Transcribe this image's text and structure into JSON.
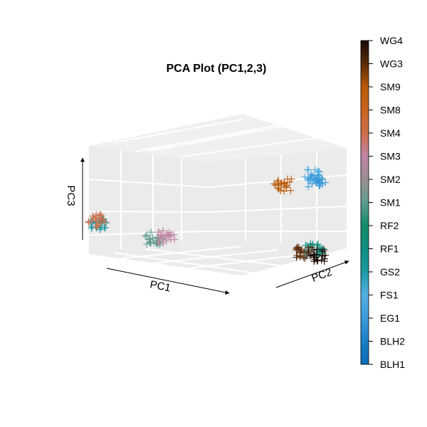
{
  "chart_data": {
    "type": "scatter",
    "title": "PCA Plot (PC1,2,3)",
    "xlabel": "PC1",
    "ylabel": "PC2",
    "zlabel": "PC3",
    "projection": "3d",
    "grid": true,
    "marker": "plus",
    "legend": {
      "type": "colorbar",
      "placement": "right",
      "labels": [
        "BLH1",
        "BLH2",
        "EG1",
        "FS1",
        "GS2",
        "RF1",
        "RF2",
        "SM1",
        "SM2",
        "SM3",
        "SM4",
        "SM8",
        "SM9",
        "WG3",
        "WG4"
      ],
      "colors": [
        "#0a6bb5",
        "#1a7fc6",
        "#3a9ad9",
        "#55aee0",
        "#1e9aa3",
        "#0f8f80",
        "#138b6a",
        "#5f9c8f",
        "#9a8f93",
        "#c084a4",
        "#cc6e4a",
        "#c9651f",
        "#b85a08",
        "#5a2a08",
        "#1a0a04"
      ]
    },
    "clusters": [
      {
        "group": "GS2",
        "pc1": -2.0,
        "pc2": -2.0,
        "pc3": -0.4,
        "color": "#1e9aa3"
      },
      {
        "group": "SM4",
        "pc1": -2.0,
        "pc2": -2.0,
        "pc3": -0.3,
        "color": "#cc6e4a"
      },
      {
        "group": "SM1",
        "pc1": -0.5,
        "pc2": -1.5,
        "pc3": -0.8,
        "color": "#5f9c8f"
      },
      {
        "group": "SM3",
        "pc1": 0.2,
        "pc2": -1.8,
        "pc3": -0.5,
        "color": "#c084a4"
      },
      {
        "group": "SM9",
        "pc1": 1.3,
        "pc2": 1.2,
        "pc3": 1.2,
        "color": "#b85a08"
      },
      {
        "group": "FS1",
        "pc1": 1.6,
        "pc2": 2.0,
        "pc3": 1.5,
        "color": "#55aee0"
      },
      {
        "group": "EG1",
        "pc1": 1.7,
        "pc2": 2.0,
        "pc3": 1.3,
        "color": "#3a9ad9"
      },
      {
        "group": "RF1",
        "pc1": 1.6,
        "pc2": 2.0,
        "pc3": -1.6,
        "color": "#0f8f80"
      },
      {
        "group": "WG3",
        "pc1": 1.5,
        "pc2": 1.8,
        "pc3": -1.7,
        "color": "#5a2a08"
      },
      {
        "group": "WG4",
        "pc1": 1.7,
        "pc2": 2.0,
        "pc3": -1.8,
        "color": "#1a0a04"
      }
    ]
  }
}
